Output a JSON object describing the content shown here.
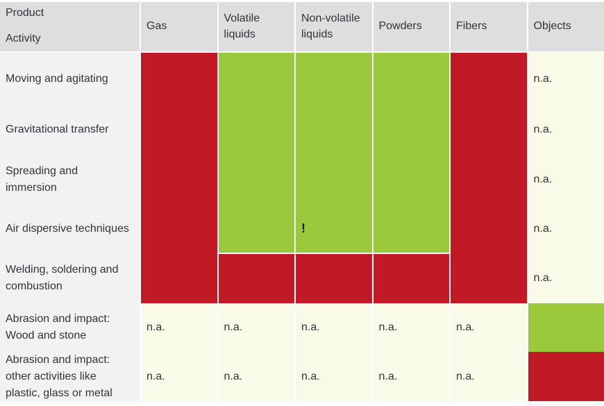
{
  "table": {
    "corner": {
      "top": "Product",
      "bottom": "Activity"
    }
  },
  "chart_data": {
    "type": "heatmap",
    "x_axis_label": "Product",
    "y_axis_label": "Activity",
    "x_categories": [
      "Gas",
      "Volatile liquids",
      "Non-volatile liquids",
      "Powders",
      "Fibers",
      "Objects"
    ],
    "y_categories": [
      "Moving and agitating",
      "Gravitational transfer",
      "Spreading and immersion",
      "Air dispersive techniques",
      "Welding, soldering and combustion",
      "Abrasion and impact: Wood and stone",
      "Abrasion and impact: other activities like plastic, glass or metal"
    ],
    "cells": [
      [
        "red",
        "green",
        "green",
        "green",
        "red",
        "na"
      ],
      [
        "red",
        "green",
        "green",
        "green",
        "red",
        "na"
      ],
      [
        "red",
        "green",
        "green",
        "green",
        "red",
        "na"
      ],
      [
        "red",
        "green",
        "green",
        "green",
        "red",
        "na"
      ],
      [
        "red",
        "red",
        "red",
        "red",
        "red",
        "na"
      ],
      [
        "na",
        "na",
        "na",
        "na",
        "na",
        "green"
      ],
      [
        "na",
        "na",
        "na",
        "na",
        "na",
        "red"
      ]
    ],
    "na_text": "n.a.",
    "annotations": [
      {
        "row": 3,
        "col": 2,
        "text": "!"
      }
    ],
    "white_dividers": [
      {
        "row": 4,
        "cols": [
          1,
          2,
          3
        ]
      }
    ],
    "colors": {
      "red": "#c11a26",
      "green": "#9aca3b",
      "na": "#f9fbe8",
      "header_bg": "#dedede",
      "row_label_bg": "#f2f2f2",
      "text": "#32323a"
    },
    "legend": "none",
    "grid": "off"
  }
}
